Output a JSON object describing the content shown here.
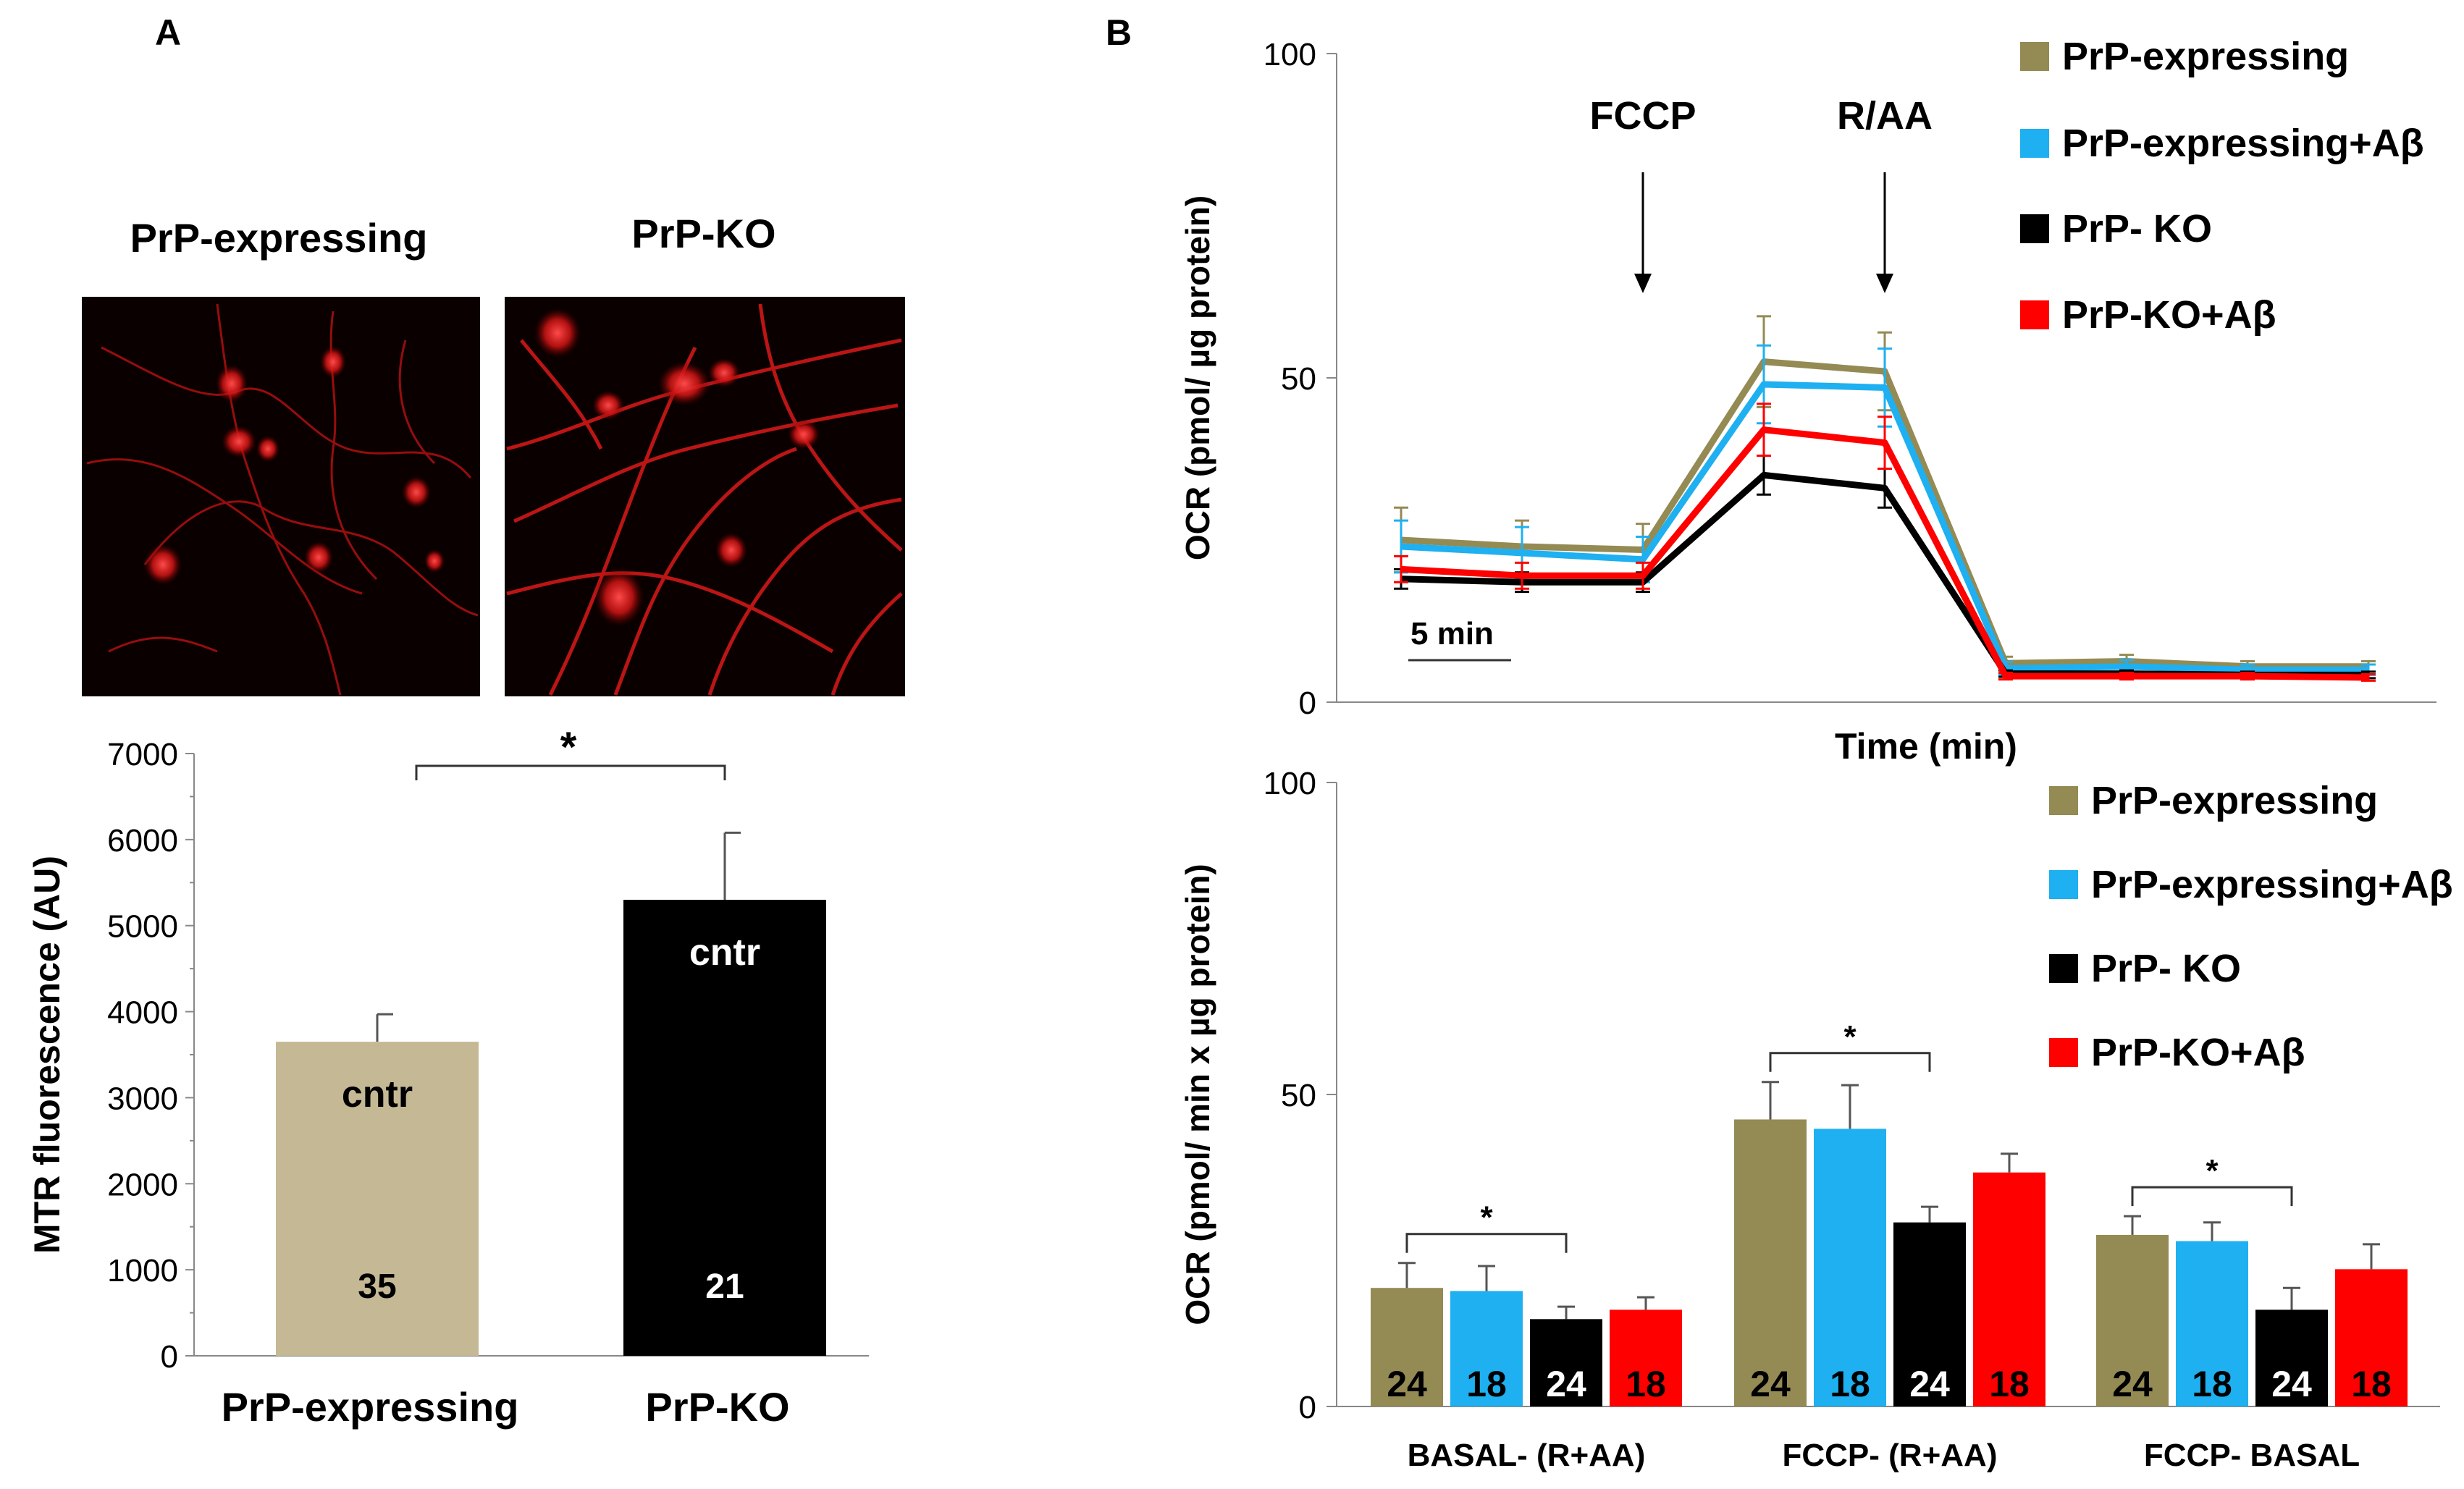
{
  "panel_labels": {
    "a": "A",
    "b": "B"
  },
  "colors": {
    "olive": "#948A54",
    "tan": "#C4B994",
    "cyan": "#1EB0F0",
    "black": "#000000",
    "red": "#FF0000",
    "micro_bg": "#0A0000",
    "micro_signal": "#E01818"
  },
  "micrographs": [
    {
      "label": "PrP-expressing",
      "image": "fluorescence-micrograph-prp-expressing"
    },
    {
      "label": "PrP-KO",
      "image": "fluorescence-micrograph-prp-ko"
    }
  ],
  "chart_data": [
    {
      "id": "mtr",
      "type": "bar",
      "ylabel": "MTR fluorescence (AU)",
      "xlabel": "",
      "ylim": [
        0,
        7000
      ],
      "yticks": [
        "0",
        "1000",
        "2000",
        "3000",
        "4000",
        "5000",
        "6000",
        "7000"
      ],
      "categories": [
        "PrP-expressing",
        "PrP-KO"
      ],
      "values": [
        3650,
        5300
      ],
      "errors": [
        320,
        780
      ],
      "colors": [
        "#C4B994",
        "#000000"
      ],
      "bar_labels": [
        "cntr",
        "cntr"
      ],
      "n": [
        "35",
        "21"
      ],
      "significance": "*"
    },
    {
      "id": "ocr-time",
      "type": "line",
      "ylabel": "OCR (pmol/ µg protein)",
      "xlabel": "Time (min)",
      "ylim": [
        0,
        100
      ],
      "yticks": [
        "0",
        "50",
        "100"
      ],
      "x": [
        1,
        2,
        3,
        4,
        5,
        6,
        7,
        8,
        9
      ],
      "series": [
        {
          "name": "PrP-expressing",
          "color": "#948A54",
          "values": [
            25,
            24,
            23.5,
            52.5,
            51,
            6,
            6.3,
            5.5,
            5.5
          ],
          "errors": [
            5,
            4,
            4,
            7,
            6,
            1,
            1,
            0.8,
            0.8
          ]
        },
        {
          "name": "PrP-expressing+Aβ",
          "color": "#1EB0F0",
          "values": [
            24,
            23,
            22,
            49,
            48.5,
            5.2,
            5.5,
            5,
            5
          ],
          "errors": [
            4,
            4,
            3.5,
            6,
            6,
            1,
            1,
            0.8,
            0.8
          ]
        },
        {
          "name": "PrP- KO",
          "color": "#000000",
          "values": [
            19,
            18.5,
            18.5,
            35,
            33,
            4.4,
            4.4,
            4.2,
            4.2
          ],
          "errors": [
            1.5,
            1.5,
            1.5,
            3,
            3,
            0.5,
            0.5,
            0.5,
            0.5
          ]
        },
        {
          "name": "PrP-KO+Aβ",
          "color": "#FF0000",
          "values": [
            20.5,
            19.5,
            19.5,
            42,
            40,
            4,
            4,
            4,
            3.8
          ],
          "errors": [
            2,
            2,
            2,
            4,
            4,
            0.5,
            0.5,
            0.5,
            0.5
          ]
        }
      ],
      "annotations": [
        {
          "text": "FCCP",
          "x": 3
        },
        {
          "text": "R/AA",
          "x": 5
        }
      ],
      "scale_bar": "5 min"
    },
    {
      "id": "ocr-bars",
      "type": "bar",
      "ylabel": "OCR (pmol/ min x µg protein)",
      "xlabel": "",
      "ylim": [
        0,
        100
      ],
      "yticks": [
        "0",
        "50",
        "100"
      ],
      "categories": [
        "BASAL- (R+AA)",
        "FCCP- (R+AA)",
        "FCCP- BASAL"
      ],
      "series": [
        {
          "name": "PrP-expressing",
          "color": "#948A54",
          "values": [
            19,
            46,
            27.5
          ],
          "errors": [
            4,
            6,
            3
          ],
          "n": "24"
        },
        {
          "name": "PrP-expressing+Aβ",
          "color": "#1EB0F0",
          "values": [
            18.5,
            44.5,
            26.5
          ],
          "errors": [
            4,
            7,
            3
          ],
          "n": "18"
        },
        {
          "name": "PrP- KO",
          "color": "#000000",
          "values": [
            14,
            29.5,
            15.5
          ],
          "errors": [
            2,
            2.5,
            3.5
          ],
          "n": "24"
        },
        {
          "name": "PrP-KO+Aβ",
          "color": "#FF0000",
          "values": [
            15.5,
            37.5,
            22
          ],
          "errors": [
            2,
            3,
            4
          ],
          "n": "18"
        }
      ],
      "significance": [
        "*",
        "*",
        "*"
      ]
    }
  ]
}
